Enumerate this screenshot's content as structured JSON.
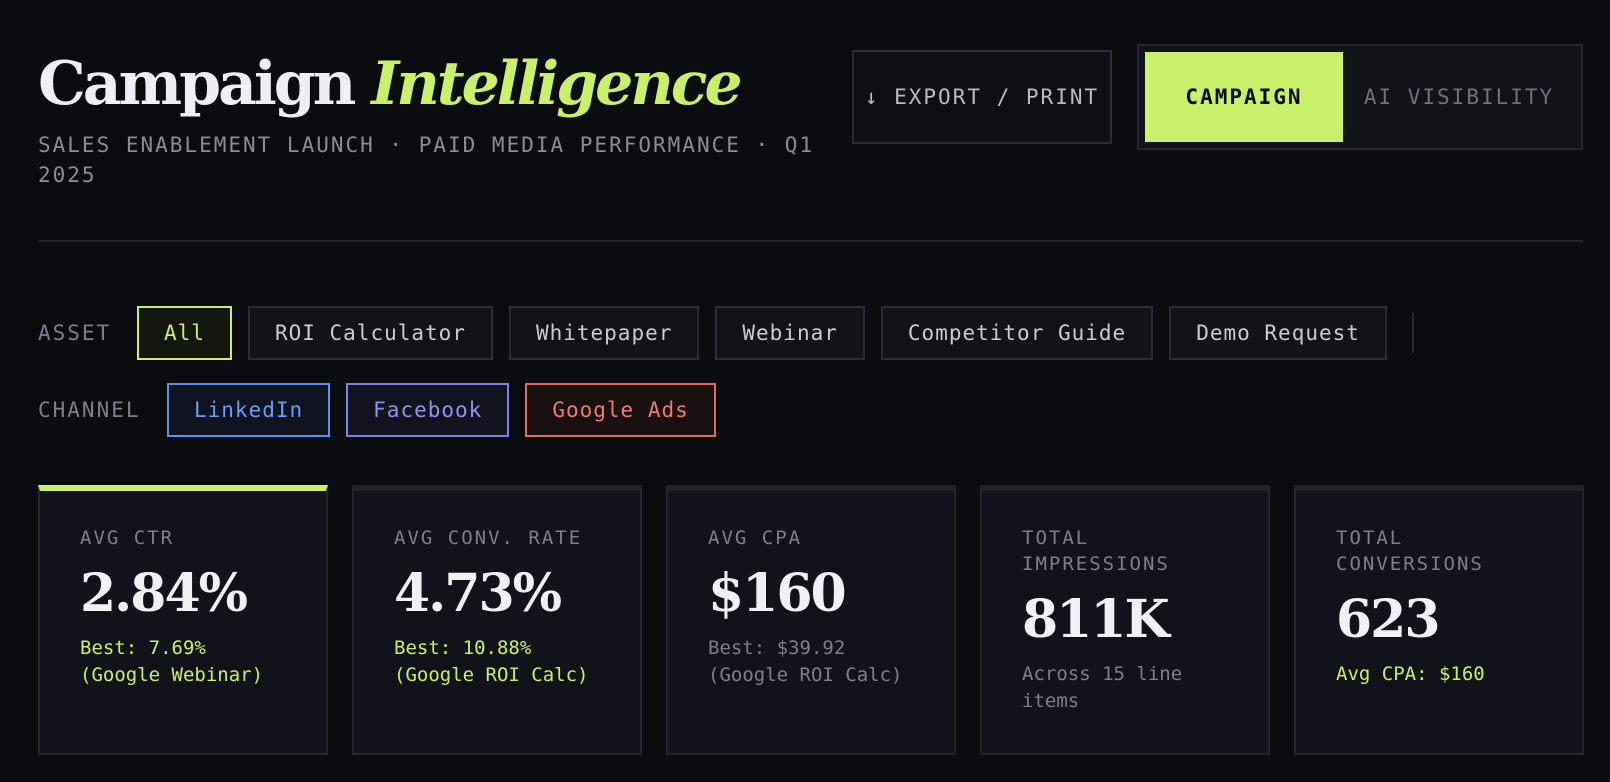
{
  "header": {
    "title_main": "Campaign",
    "title_accent": "Intelligence",
    "subtitle": "SALES ENABLEMENT LAUNCH · PAID MEDIA PERFORMANCE · Q1 2025",
    "export_label": "↓ EXPORT / PRINT",
    "view_toggle": {
      "active": "CAMPAIGN",
      "inactive": "AI VISIBILITY"
    }
  },
  "filters": {
    "asset": {
      "label": "ASSET",
      "options": [
        "All",
        "ROI Calculator",
        "Whitepaper",
        "Webinar",
        "Competitor Guide",
        "Demo Request"
      ],
      "selected": "All"
    },
    "channel": {
      "label": "CHANNEL",
      "options": [
        "LinkedIn",
        "Facebook",
        "Google Ads"
      ]
    }
  },
  "kpis": [
    {
      "label": "AVG CTR",
      "value": "2.84%",
      "note": "Best: 7.69% (Google Webinar)"
    },
    {
      "label": "AVG CONV. RATE",
      "value": "4.73%",
      "note": "Best: 10.88% (Google ROI Calc)"
    },
    {
      "label": "AVG CPA",
      "value": "$160",
      "note": "Best: $39.92 (Google ROI Calc)"
    },
    {
      "label": "TOTAL IMPRESSIONS",
      "value": "811K",
      "note": "Across 15 line items"
    },
    {
      "label": "TOTAL CONVERSIONS",
      "value": "623",
      "note": "Avg CPA: $160"
    }
  ],
  "colors": {
    "accent": "#c8f06a",
    "background": "#0b0c10",
    "linkedin": "#6d9ef7",
    "facebook": "#8e93f3",
    "google_ads": "#ef7b6e"
  }
}
